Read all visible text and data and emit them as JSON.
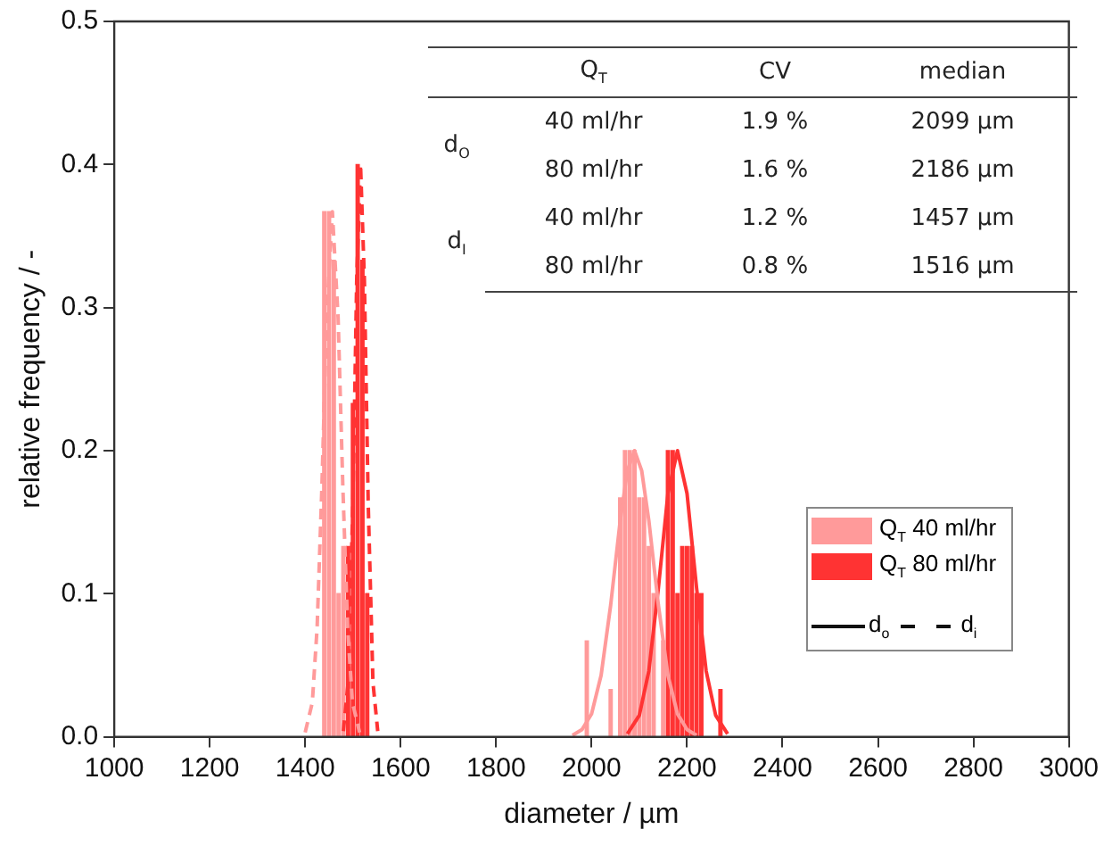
{
  "chart_data": {
    "type": "bar",
    "xlabel": "diameter / µm",
    "ylabel": "relative frequency / -",
    "xlim": [
      1000,
      3000
    ],
    "xticks": [
      1000,
      1200,
      1400,
      1600,
      1800,
      2000,
      2200,
      2400,
      2600,
      2800,
      3000
    ],
    "ylim": [
      0,
      0.5
    ],
    "yticks": [
      {
        "value": 0,
        "label": "0.0"
      },
      {
        "value": 0.1,
        "label": "0.1"
      },
      {
        "value": 0.2,
        "label": "0.2"
      },
      {
        "value": 0.3,
        "label": "0.3"
      },
      {
        "value": 0.4,
        "label": "0.4"
      },
      {
        "value": 0.5,
        "label": "0.5"
      }
    ],
    "grid": false,
    "legend": "right",
    "series": [
      {
        "name": "Q$_{T}$ 40 ml/hr",
        "color": "#ff9a9a",
        "x": [
          1440,
          1450,
          1460,
          1470,
          1480,
          1990,
          2040,
          2060,
          2070,
          2080,
          2090,
          2100,
          2110,
          2120,
          2130,
          2150
        ],
        "values": [
          0.367,
          0.367,
          0.333,
          0.1,
          0.133,
          0.067,
          0.033,
          0.167,
          0.2,
          0.2,
          0.2,
          0.167,
          0.167,
          0.133,
          0.1,
          0.067
        ]
      },
      {
        "name": "Q$_{T}$ 80 ml/hr",
        "color": "#ff3333",
        "x": [
          1490,
          1500,
          1510,
          1520,
          1530,
          2160,
          2170,
          2180,
          2190,
          2200,
          2210,
          2220,
          2230,
          2270
        ],
        "values": [
          0.133,
          0.233,
          0.4,
          0.333,
          0.1,
          0.2,
          0.2,
          0.1,
          0.133,
          0.133,
          0.133,
          0.1,
          0.1,
          0.033
        ]
      },
      {
        "type": "line",
        "color": "#ff9a9a",
        "line_style": "solid",
        "x": [
          1960,
          1980,
          2000,
          2020,
          2040,
          2060,
          2075,
          2090,
          2105,
          2120,
          2140,
          2160,
          2180,
          2200,
          2220
        ],
        "values": [
          0.001,
          0.005,
          0.016,
          0.043,
          0.092,
          0.151,
          0.186,
          0.2,
          0.186,
          0.151,
          0.092,
          0.043,
          0.016,
          0.005,
          0.001
        ]
      },
      {
        "type": "line",
        "color": "#ff3333",
        "line_style": "solid",
        "x": [
          2075,
          2100,
          2120,
          2140,
          2160,
          2180,
          2200,
          2220,
          2240,
          2260,
          2285
        ],
        "values": [
          0.002,
          0.015,
          0.046,
          0.104,
          0.17,
          0.2,
          0.17,
          0.104,
          0.046,
          0.015,
          0.002
        ]
      },
      {
        "type": "line",
        "color": "#ff9a9a",
        "line_style": "dashed",
        "x": [
          1400,
          1415,
          1425,
          1435,
          1445,
          1457,
          1469,
          1479,
          1489,
          1499,
          1514
        ],
        "values": [
          0.003,
          0.024,
          0.076,
          0.174,
          0.293,
          0.367,
          0.293,
          0.174,
          0.076,
          0.024,
          0.003
        ]
      },
      {
        "type": "line",
        "color": "#ff3333",
        "line_style": "dashed",
        "x": [
          1480,
          1490,
          1500,
          1508,
          1516,
          1524,
          1532,
          1542,
          1552
        ],
        "values": [
          0.004,
          0.038,
          0.164,
          0.32,
          0.4,
          0.32,
          0.164,
          0.038,
          0.004
        ]
      }
    ],
    "annotations": [
      "Q$_{T}$",
      "CV",
      "median",
      "d$_{O}$",
      "40 ml/hr",
      "1.9 %",
      "2099 µm",
      "80 ml/hr",
      "1.6 %",
      "2186 µm",
      "d$_{I}$",
      "40 ml/hr",
      "1.2 %",
      "1457 µm",
      "80 ml/hr",
      "0.8 %",
      "1516 µm",
      "d$_{o}$",
      "d$_{i}$"
    ]
  }
}
